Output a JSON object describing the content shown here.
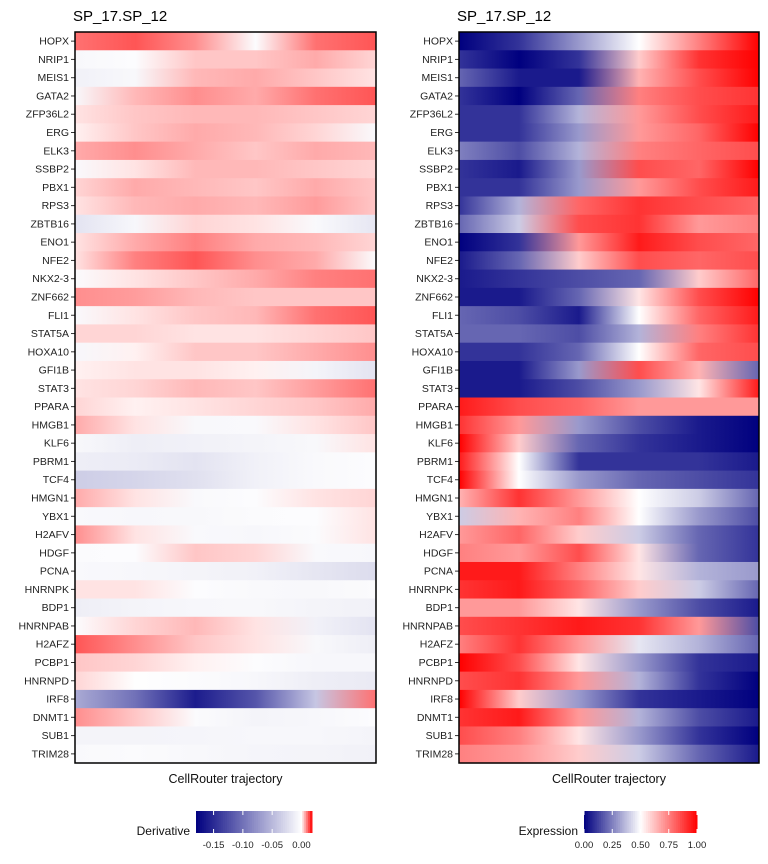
{
  "chart_data": [
    {
      "type": "heatmap",
      "title": "SP_17.SP_12",
      "xlabel": "CellRouter trajectory",
      "ylabel": "",
      "legend": {
        "title": "Derivative",
        "ticks": [
          "-0.15",
          "-0.10",
          "-0.05",
          "0.00"
        ],
        "tick_values": [
          -0.15,
          -0.1,
          -0.05,
          0.0
        ],
        "range": [
          -0.18,
          0.018
        ],
        "colors": {
          "low": "#00007f",
          "mid": "#ffffff",
          "high": "#ff0000"
        },
        "placement": "bottom"
      },
      "rows": [
        "HOPX",
        "NRIP1",
        "MEIS1",
        "GATA2",
        "ZFP36L2",
        "ERG",
        "ELK3",
        "SSBP2",
        "PBX1",
        "RPS3",
        "ZBTB16",
        "ENO1",
        "NFE2",
        "NKX2-3",
        "ZNF662",
        "FLI1",
        "STAT5A",
        "HOXA10",
        "GFI1B",
        "STAT3",
        "PPARA",
        "HMGB1",
        "KLF6",
        "PBRM1",
        "TCF4",
        "HMGN1",
        "YBX1",
        "H2AFV",
        "HDGF",
        "PCNA",
        "HNRNPK",
        "BDP1",
        "HNRNPAB",
        "H2AFZ",
        "PCBP1",
        "HNRNPD",
        "IRF8",
        "DNMT1",
        "SUB1",
        "TRIM28"
      ],
      "x": [
        0,
        0.2,
        0.4,
        0.6,
        0.8,
        1.0
      ],
      "values": [
        [
          0.01,
          0.012,
          0.008,
          -0.002,
          0.01,
          0.012
        ],
        [
          -0.005,
          -0.002,
          0.004,
          0.004,
          0.006,
          0.003
        ],
        [
          -0.01,
          -0.005,
          0.005,
          0.006,
          0.004,
          0.002
        ],
        [
          -0.005,
          0.005,
          0.008,
          0.006,
          0.01,
          0.012
        ],
        [
          0.002,
          0.004,
          0.005,
          0.005,
          0.004,
          0.003
        ],
        [
          0.001,
          0.004,
          0.006,
          0.005,
          0.003,
          -0.004
        ],
        [
          0.006,
          0.008,
          0.006,
          0.004,
          0.006,
          0.005
        ],
        [
          -0.004,
          0.002,
          0.005,
          0.005,
          0.004,
          0.003
        ],
        [
          0.003,
          0.006,
          0.005,
          0.004,
          0.006,
          0.004
        ],
        [
          0.002,
          0.005,
          0.006,
          0.005,
          0.007,
          0.004
        ],
        [
          -0.02,
          -0.006,
          0.003,
          0.002,
          -0.004,
          -0.018
        ],
        [
          0.002,
          0.006,
          0.009,
          0.006,
          0.005,
          0.003
        ],
        [
          0.002,
          0.009,
          0.012,
          0.008,
          0.006,
          -0.003
        ],
        [
          -0.003,
          0.002,
          0.004,
          0.006,
          0.009,
          0.01
        ],
        [
          0.008,
          0.007,
          0.005,
          0.004,
          0.004,
          0.004
        ],
        [
          -0.004,
          0.002,
          0.004,
          0.005,
          0.01,
          0.012
        ],
        [
          0.003,
          0.003,
          0.002,
          0.002,
          0.003,
          0.004
        ],
        [
          -0.006,
          0.001,
          0.004,
          0.004,
          0.006,
          0.008
        ],
        [
          0.001,
          0.002,
          0.002,
          0.001,
          -0.008,
          -0.02
        ],
        [
          0.002,
          0.003,
          0.005,
          0.004,
          0.007,
          0.01
        ],
        [
          0.003,
          0.001,
          0.002,
          0.003,
          0.004,
          0.006
        ],
        [
          0.006,
          0.002,
          -0.005,
          -0.004,
          0.002,
          0.004
        ],
        [
          -0.005,
          -0.012,
          -0.01,
          -0.008,
          -0.005,
          0.002
        ],
        [
          -0.012,
          -0.014,
          -0.02,
          -0.01,
          -0.004,
          -0.002
        ],
        [
          -0.035,
          -0.03,
          -0.022,
          -0.01,
          -0.004,
          -0.002
        ],
        [
          0.006,
          0.002,
          -0.004,
          -0.002,
          0.002,
          0.003
        ],
        [
          -0.004,
          -0.006,
          -0.005,
          -0.003,
          -0.002,
          0.002
        ],
        [
          0.008,
          0.002,
          -0.004,
          -0.006,
          -0.003,
          0.002
        ],
        [
          -0.003,
          -0.002,
          0.004,
          0.003,
          -0.004,
          -0.006
        ],
        [
          -0.004,
          -0.006,
          -0.008,
          -0.01,
          -0.018,
          -0.025
        ],
        [
          0.002,
          0.002,
          -0.002,
          -0.004,
          -0.005,
          -0.003
        ],
        [
          -0.012,
          -0.008,
          -0.006,
          -0.005,
          -0.008,
          -0.01
        ],
        [
          -0.002,
          0.003,
          0.005,
          0.002,
          -0.01,
          -0.02
        ],
        [
          0.012,
          0.008,
          0.004,
          0.002,
          -0.005,
          -0.012
        ],
        [
          0.004,
          0.003,
          0.001,
          -0.002,
          -0.006,
          -0.006
        ],
        [
          0.003,
          -0.001,
          -0.003,
          -0.006,
          -0.012,
          -0.015
        ],
        [
          -0.06,
          -0.1,
          -0.16,
          -0.12,
          -0.04,
          0.01
        ],
        [
          0.008,
          0.004,
          -0.003,
          -0.008,
          -0.006,
          -0.002
        ],
        [
          -0.008,
          -0.008,
          -0.007,
          -0.006,
          -0.006,
          -0.008
        ],
        [
          -0.004,
          -0.003,
          -0.005,
          -0.007,
          -0.008,
          -0.01
        ]
      ]
    },
    {
      "type": "heatmap",
      "title": "SP_17.SP_12",
      "xlabel": "CellRouter trajectory",
      "ylabel": "",
      "legend": {
        "title": "Expression",
        "ticks": [
          "0.00",
          "0.25",
          "0.50",
          "0.75",
          "1.00"
        ],
        "tick_values": [
          0,
          0.25,
          0.5,
          0.75,
          1.0
        ],
        "range": [
          0,
          1
        ],
        "colors": {
          "low": "#00007f",
          "mid": "#ffffff",
          "high": "#ff0000"
        },
        "placement": "bottom"
      },
      "rows": [
        "HOPX",
        "NRIP1",
        "MEIS1",
        "GATA2",
        "ZFP36L2",
        "ERG",
        "ELK3",
        "SSBP2",
        "PBX1",
        "RPS3",
        "ZBTB16",
        "ENO1",
        "NFE2",
        "NKX2-3",
        "ZNF662",
        "FLI1",
        "STAT5A",
        "HOXA10",
        "GFI1B",
        "STAT3",
        "PPARA",
        "HMGB1",
        "KLF6",
        "PBRM1",
        "TCF4",
        "HMGN1",
        "YBX1",
        "H2AFV",
        "HDGF",
        "PCNA",
        "HNRNPK",
        "BDP1",
        "HNRNPAB",
        "H2AFZ",
        "PCBP1",
        "HNRNPD",
        "IRF8",
        "DNMT1",
        "SUB1",
        "TRIM28"
      ],
      "x": [
        0,
        0.2,
        0.4,
        0.6,
        0.8,
        1.0
      ],
      "values": [
        [
          0.0,
          0.1,
          0.3,
          0.5,
          0.75,
          1.0
        ],
        [
          0.1,
          0.0,
          0.1,
          0.6,
          0.9,
          1.0
        ],
        [
          0.2,
          0.05,
          0.05,
          0.65,
          0.85,
          1.0
        ],
        [
          0.1,
          0.0,
          0.2,
          0.75,
          0.85,
          0.9
        ],
        [
          0.1,
          0.1,
          0.35,
          0.7,
          0.85,
          0.95
        ],
        [
          0.1,
          0.1,
          0.3,
          0.7,
          0.8,
          1.0
        ],
        [
          0.25,
          0.15,
          0.35,
          0.75,
          0.8,
          0.85
        ],
        [
          0.1,
          0.05,
          0.3,
          0.85,
          0.8,
          1.0
        ],
        [
          0.1,
          0.1,
          0.3,
          0.7,
          0.85,
          0.95
        ],
        [
          0.1,
          0.35,
          0.8,
          0.9,
          0.85,
          0.8
        ],
        [
          0.2,
          0.4,
          0.85,
          0.9,
          0.7,
          0.75
        ],
        [
          0.0,
          0.1,
          0.7,
          0.95,
          0.85,
          0.8
        ],
        [
          0.05,
          0.2,
          0.6,
          0.85,
          0.8,
          0.85
        ],
        [
          0.05,
          0.1,
          0.15,
          0.2,
          0.6,
          0.8
        ],
        [
          0.05,
          0.05,
          0.2,
          0.55,
          0.85,
          1.0
        ],
        [
          0.2,
          0.15,
          0.05,
          0.5,
          0.8,
          0.95
        ],
        [
          0.2,
          0.2,
          0.15,
          0.35,
          0.75,
          0.9
        ],
        [
          0.1,
          0.1,
          0.2,
          0.5,
          0.8,
          0.85
        ],
        [
          0.05,
          0.05,
          0.3,
          0.85,
          0.65,
          0.2
        ],
        [
          0.05,
          0.05,
          0.15,
          0.3,
          0.55,
          0.95
        ],
        [
          0.95,
          0.85,
          0.8,
          0.7,
          0.7,
          0.7
        ],
        [
          0.9,
          0.7,
          0.3,
          0.15,
          0.05,
          0.0
        ],
        [
          1.0,
          0.6,
          0.2,
          0.1,
          0.05,
          0.0
        ],
        [
          0.95,
          0.5,
          0.1,
          0.1,
          0.1,
          0.05
        ],
        [
          1.0,
          0.5,
          0.3,
          0.2,
          0.15,
          0.1
        ],
        [
          0.65,
          0.9,
          0.7,
          0.5,
          0.4,
          0.2
        ],
        [
          0.4,
          0.65,
          0.75,
          0.5,
          0.3,
          0.15
        ],
        [
          0.7,
          0.8,
          0.6,
          0.4,
          0.2,
          0.1
        ],
        [
          0.75,
          0.7,
          0.85,
          0.55,
          0.2,
          0.1
        ],
        [
          0.95,
          0.95,
          0.75,
          0.55,
          0.35,
          0.3
        ],
        [
          0.9,
          0.95,
          0.8,
          0.6,
          0.4,
          0.2
        ],
        [
          0.7,
          0.7,
          0.55,
          0.3,
          0.15,
          0.05
        ],
        [
          0.85,
          0.9,
          0.95,
          0.9,
          0.7,
          0.15
        ],
        [
          0.75,
          0.9,
          0.7,
          0.45,
          0.35,
          0.2
        ],
        [
          1.0,
          0.85,
          0.55,
          0.3,
          0.1,
          0.05
        ],
        [
          0.85,
          0.9,
          0.7,
          0.35,
          0.1,
          0.0
        ],
        [
          1.0,
          0.6,
          0.3,
          0.1,
          0.05,
          0.0
        ],
        [
          0.9,
          0.95,
          0.7,
          0.35,
          0.15,
          0.05
        ],
        [
          0.85,
          0.75,
          0.55,
          0.3,
          0.1,
          0.0
        ],
        [
          0.75,
          0.7,
          0.6,
          0.4,
          0.2,
          0.05
        ]
      ]
    }
  ]
}
